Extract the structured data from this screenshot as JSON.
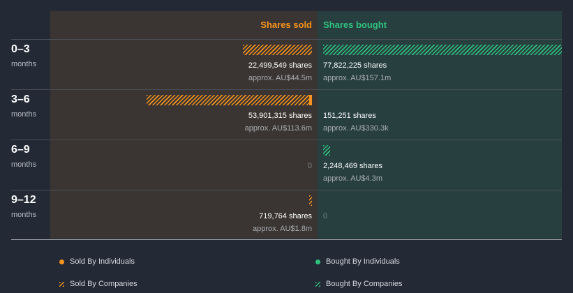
{
  "headers": {
    "sold": "Shares sold",
    "bought": "Shares bought"
  },
  "colors": {
    "sold": "#f7931d",
    "bought": "#2ec27e"
  },
  "chart_data": {
    "type": "bar",
    "categories": [
      "0–3",
      "3–6",
      "6–9",
      "9–12"
    ],
    "category_unit": "months",
    "series": [
      {
        "name": "Sold By Companies",
        "values": [
          22499549,
          52951315,
          0,
          719764
        ]
      },
      {
        "name": "Sold By Individuals",
        "values": [
          0,
          950000,
          0,
          0
        ]
      },
      {
        "name": "Bought By Companies",
        "values": [
          77822225,
          0,
          2248469,
          0
        ]
      },
      {
        "name": "Bought By Individuals",
        "values": [
          0,
          151251,
          0,
          0
        ]
      }
    ],
    "rows": [
      {
        "sold_label": "22,499,549 shares",
        "sold_approx": "approx. AU$44.5m",
        "bought_label": "77,822,225 shares",
        "bought_approx": "approx. AU$157.1m"
      },
      {
        "sold_label": "53,901,315 shares",
        "sold_approx": "approx. AU$113.6m",
        "bought_label": "151,251 shares",
        "bought_approx": "approx. AU$330.3k"
      },
      {
        "sold_zero": "0",
        "bought_label": "2,248,469 shares",
        "bought_approx": "approx. AU$4.3m"
      },
      {
        "sold_label": "719,764 shares",
        "sold_approx": "approx. AU$1.8m",
        "bought_zero": "0"
      }
    ],
    "legend": {
      "sold_individuals": "Sold By Individuals",
      "bought_individuals": "Bought By Individuals",
      "sold_companies": "Sold By Companies",
      "bought_companies": "Bought By Companies"
    }
  }
}
